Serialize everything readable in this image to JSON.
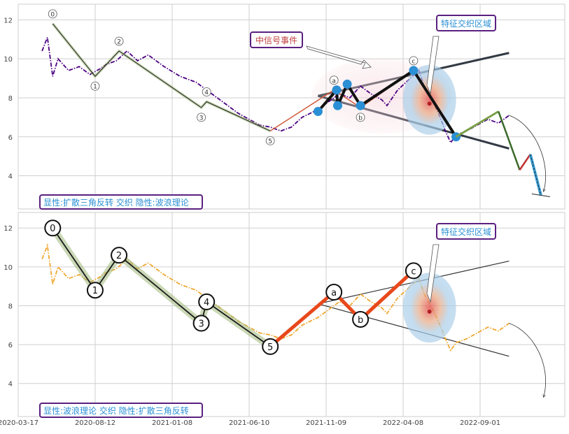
{
  "chart_data": [
    {
      "type": "line",
      "panel": "top",
      "ylim": [
        2.3,
        12.8
      ],
      "y_ticks": [
        "4",
        "6",
        "8",
        "10",
        "12"
      ],
      "grid": true,
      "series": [
        {
          "style": "dash-dot",
          "color": "#4b0082",
          "points": [
            [
              0,
              10.4
            ],
            [
              1,
              11.1
            ],
            [
              2,
              9.1
            ],
            [
              3,
              10.0
            ],
            [
              5,
              9.4
            ],
            [
              7,
              9.6
            ],
            [
              9,
              9.2
            ],
            [
              11,
              9.5
            ],
            [
              12,
              9.7
            ],
            [
              14,
              9.9
            ],
            [
              16,
              10.4
            ],
            [
              18,
              9.9
            ],
            [
              20,
              10.2
            ],
            [
              23,
              9.6
            ],
            [
              26,
              9.1
            ],
            [
              29,
              8.8
            ],
            [
              32,
              8.2
            ],
            [
              35,
              7.6
            ],
            [
              37,
              7.2
            ],
            [
              39,
              6.9
            ],
            [
              41,
              6.6
            ],
            [
              43,
              6.5
            ],
            [
              45,
              6.3
            ],
            [
              47,
              6.5
            ],
            [
              49,
              7.0
            ],
            [
              52,
              7.4
            ],
            [
              54,
              7.8
            ],
            [
              56,
              8.2
            ],
            [
              58,
              8.0
            ],
            [
              60,
              8.6
            ],
            [
              62,
              8.2
            ],
            [
              64,
              7.9
            ],
            [
              65,
              7.6
            ],
            [
              67,
              8.4
            ],
            [
              69,
              8.9
            ],
            [
              71,
              9.4
            ],
            [
              72,
              8.6
            ],
            [
              73,
              8.1
            ],
            [
              74,
              7.6
            ],
            [
              75,
              7.0
            ],
            [
              76,
              6.3
            ],
            [
              77,
              5.7
            ],
            [
              78,
              6.1
            ],
            [
              80,
              6.3
            ],
            [
              82,
              6.6
            ],
            [
              84,
              6.9
            ],
            [
              86,
              6.7
            ],
            [
              88,
              7.1
            ]
          ]
        }
      ],
      "waves": [
        {
          "label": "0",
          "x": 2,
          "y": 11.8
        },
        {
          "label": "1",
          "x": 10,
          "y": 9.1
        },
        {
          "label": "2",
          "x": 14.5,
          "y": 10.4
        },
        {
          "label": "3",
          "x": 30,
          "y": 7.5
        },
        {
          "label": "4",
          "x": 31,
          "y": 7.8
        },
        {
          "label": "5",
          "x": 43,
          "y": 6.3
        },
        {
          "label": "a",
          "x": 55,
          "y": 8.4
        },
        {
          "label": "b",
          "x": 60,
          "y": 7.5
        },
        {
          "label": "c",
          "x": 70,
          "y": 9.4
        }
      ],
      "pattern_points": [
        [
          52,
          7.3
        ],
        [
          55.5,
          8.4
        ],
        [
          55.7,
          7.6
        ],
        [
          57.5,
          8.7
        ],
        [
          60,
          7.6
        ],
        [
          70,
          9.4
        ],
        [
          78,
          6.0
        ]
      ],
      "projection": [
        [
          78,
          6.0
        ],
        [
          86,
          7.3
        ],
        [
          90,
          4.3
        ],
        [
          92,
          5.1
        ],
        [
          94,
          3.0
        ]
      ],
      "annotations": {
        "signal_event": "中信号事件",
        "feature_region": "特征交织区域"
      },
      "caption": "显性:扩散三角反转 交织 隐性:波浪理论"
    },
    {
      "type": "line",
      "panel": "bottom",
      "ylim": [
        2.3,
        12.8
      ],
      "y_ticks": [
        "4",
        "6",
        "8",
        "10",
        "12"
      ],
      "grid": true,
      "x_ticks": [
        "2020-03-17",
        "2020-08-12",
        "2021-01-08",
        "2021-06-10",
        "2021-11-09",
        "2022-04-08",
        "2022-09-01"
      ],
      "series": [
        {
          "style": "dash-dot",
          "color": "#f0a830",
          "points": [
            [
              0,
              10.4
            ],
            [
              1,
              11.1
            ],
            [
              2,
              9.1
            ],
            [
              3,
              10.0
            ],
            [
              5,
              9.4
            ],
            [
              7,
              9.6
            ],
            [
              9,
              9.2
            ],
            [
              11,
              9.5
            ],
            [
              12,
              9.7
            ],
            [
              14,
              9.9
            ],
            [
              16,
              10.4
            ],
            [
              18,
              9.9
            ],
            [
              20,
              10.2
            ],
            [
              23,
              9.6
            ],
            [
              26,
              9.1
            ],
            [
              29,
              8.8
            ],
            [
              32,
              8.2
            ],
            [
              35,
              7.6
            ],
            [
              37,
              7.2
            ],
            [
              39,
              6.9
            ],
            [
              41,
              6.6
            ],
            [
              43,
              6.5
            ],
            [
              45,
              6.3
            ],
            [
              47,
              6.5
            ],
            [
              49,
              7.0
            ],
            [
              52,
              7.4
            ],
            [
              54,
              7.8
            ],
            [
              56,
              8.2
            ],
            [
              58,
              8.0
            ],
            [
              60,
              8.6
            ],
            [
              62,
              8.2
            ],
            [
              64,
              7.9
            ],
            [
              65,
              7.6
            ],
            [
              67,
              8.4
            ],
            [
              69,
              8.9
            ],
            [
              71,
              9.4
            ],
            [
              72,
              8.6
            ],
            [
              73,
              8.1
            ],
            [
              74,
              7.6
            ],
            [
              75,
              7.0
            ],
            [
              76,
              6.3
            ],
            [
              77,
              5.7
            ],
            [
              78,
              6.1
            ],
            [
              80,
              6.3
            ],
            [
              82,
              6.6
            ],
            [
              84,
              6.9
            ],
            [
              86,
              6.7
            ],
            [
              88,
              7.1
            ]
          ]
        }
      ],
      "waves": [
        {
          "label": "0",
          "x": 2,
          "y": 12.0
        },
        {
          "label": "1",
          "x": 10,
          "y": 8.8
        },
        {
          "label": "2",
          "x": 14.5,
          "y": 10.6
        },
        {
          "label": "3",
          "x": 30,
          "y": 7.1
        },
        {
          "label": "4",
          "x": 31,
          "y": 8.2
        },
        {
          "label": "5",
          "x": 43,
          "y": 5.9
        },
        {
          "label": "a",
          "x": 55,
          "y": 8.7
        },
        {
          "label": "b",
          "x": 60,
          "y": 7.3
        },
        {
          "label": "c",
          "x": 70,
          "y": 9.8
        }
      ],
      "annotations": {
        "feature_region": "特征交织区域"
      },
      "caption": "显性:波浪理论 交织 隐性:扩散三角反转"
    }
  ]
}
